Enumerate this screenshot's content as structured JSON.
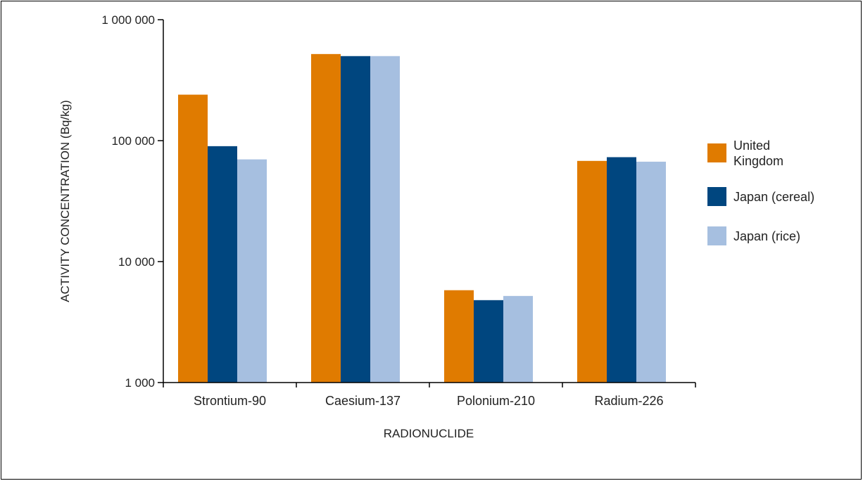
{
  "chart_data": {
    "type": "bar",
    "title": "",
    "xlabel": "RADIONUCLIDE",
    "ylabel": "ACTIVITY CONCENTRATION (Bq/kg)",
    "yscale": "log",
    "ylim": [
      1000,
      1000000
    ],
    "yticks": [
      1000,
      10000,
      100000,
      1000000
    ],
    "ytick_labels": [
      "1 000",
      "10 000",
      "100 000",
      "1 000 000"
    ],
    "categories": [
      "Strontium-90",
      "Caesium-137",
      "Polonium-210",
      "Radium-226"
    ],
    "series": [
      {
        "name": "United Kingdom",
        "color": "#e07b00",
        "values": [
          240000,
          520000,
          5800,
          68000
        ]
      },
      {
        "name": "Japan (cereal)",
        "color": "#00467f",
        "values": [
          90000,
          500000,
          4800,
          73000
        ]
      },
      {
        "name": "Japan (rice)",
        "color": "#a6bfe0",
        "values": [
          70000,
          500000,
          5200,
          67000
        ]
      }
    ],
    "legend_position": "right",
    "grid": false
  }
}
